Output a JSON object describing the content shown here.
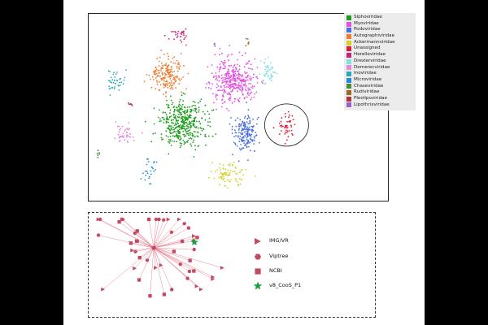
{
  "chart_data": [
    {
      "type": "scatter",
      "legend_position": "right",
      "series": [
        {
          "name": "Siphoviridae",
          "color": "#1a9e1a",
          "cx": 0.37,
          "cy": 0.58,
          "sx": 0.045,
          "sy": 0.06,
          "n": 420
        },
        {
          "name": "Myoviridae",
          "color": "#e34fe3",
          "cx": 0.57,
          "cy": 0.35,
          "sx": 0.045,
          "sy": 0.055,
          "n": 380
        },
        {
          "name": "Podoviridae",
          "color": "#4a6fe0",
          "cx": 0.62,
          "cy": 0.64,
          "sx": 0.025,
          "sy": 0.05,
          "n": 180
        },
        {
          "name": "Autographiviridae",
          "color": "#ef7b2c",
          "cx": 0.31,
          "cy": 0.32,
          "sx": 0.03,
          "sy": 0.045,
          "n": 200
        },
        {
          "name": "Ackermannviridae",
          "color": "#d6d12a",
          "cx": 0.55,
          "cy": 0.85,
          "sx": 0.03,
          "sy": 0.03,
          "n": 80
        },
        {
          "name": "Unassigned",
          "color": "#dd1b3b",
          "cx": 0.78,
          "cy": 0.59,
          "sx": 0.02,
          "sy": 0.035,
          "n": 45
        },
        {
          "name": "Herelleviridae",
          "color": "#c8227a",
          "cx": 0.36,
          "cy": 0.1,
          "sx": 0.02,
          "sy": 0.02,
          "n": 30
        },
        {
          "name": "Drexlerviridae",
          "color": "#7fe0e6",
          "cx": 0.71,
          "cy": 0.31,
          "sx": 0.015,
          "sy": 0.035,
          "n": 45
        },
        {
          "name": "Demerecviridae",
          "color": "#e08ae0",
          "cx": 0.14,
          "cy": 0.63,
          "sx": 0.02,
          "sy": 0.03,
          "n": 45
        },
        {
          "name": "Inoviridae",
          "color": "#2ca7b8",
          "cx": 0.1,
          "cy": 0.36,
          "sx": 0.02,
          "sy": 0.03,
          "n": 40
        },
        {
          "name": "Microviridae",
          "color": "#2b8ad6",
          "cx": 0.24,
          "cy": 0.83,
          "sx": 0.015,
          "sy": 0.03,
          "n": 25
        },
        {
          "name": "Chaseviridae",
          "color": "#4a8a3a",
          "cx": 0.04,
          "cy": 0.74,
          "sx": 0.008,
          "sy": 0.01,
          "n": 6
        },
        {
          "name": "Rudiviridae",
          "color": "#9b6a1e",
          "cx": 0.63,
          "cy": 0.15,
          "sx": 0.008,
          "sy": 0.012,
          "n": 6
        },
        {
          "name": "Pleolipoviridae",
          "color": "#b0333d",
          "cx": 0.17,
          "cy": 0.48,
          "sx": 0.015,
          "sy": 0.005,
          "n": 7
        },
        {
          "name": "Lipothrixviridae",
          "color": "#9a62c8",
          "cx": 0.5,
          "cy": 0.16,
          "sx": 0.006,
          "sy": 0.008,
          "n": 4
        }
      ]
    },
    {
      "type": "network",
      "legend": [
        {
          "label": "IMG/VR",
          "marker": "triangle",
          "color": "#c24a62"
        },
        {
          "label": "Viptree",
          "marker": "hexagon",
          "color": "#c24a62"
        },
        {
          "label": "NCBI",
          "marker": "square",
          "color": "#c24a62"
        },
        {
          "label": "v8_CooS_P1",
          "marker": "star",
          "color": "#1e9e3e"
        }
      ]
    }
  ],
  "colors": {
    "edge": "#e26b80",
    "node": "#c24a62",
    "highlight": "#1e9e3e"
  }
}
